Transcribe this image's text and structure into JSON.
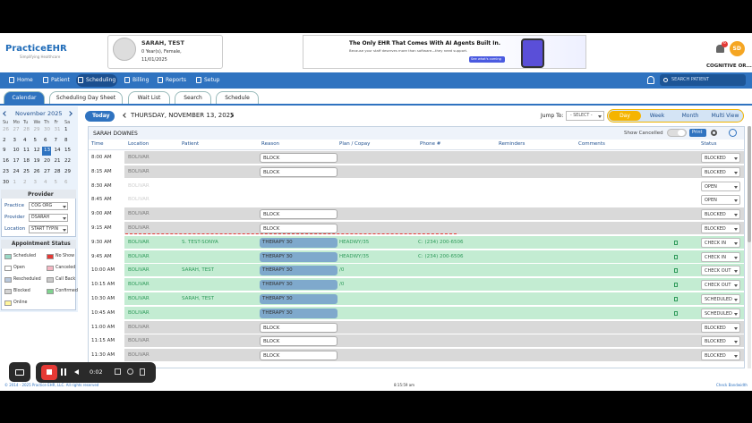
{
  "header": {
    "logo": "PracticeEHR",
    "tagline": "Simplifying Healthcare",
    "patient_name": "SARAH, TEST",
    "patient_info": "0 Year(s), Female,",
    "patient_dob": "11/01/2025",
    "ad_title": "The Only EHR That Comes With AI Agents Built In.",
    "ad_subtitle": "Because your staff deserves more than software—they need support.",
    "ad_button": "See what's coming",
    "notifications": "6",
    "user_initials": "SD",
    "user_name": "COGNITIVE OR..."
  },
  "nav": {
    "items": [
      "Home",
      "Patient",
      "Scheduling",
      "Billing",
      "Reports",
      "Setup"
    ],
    "active": 2,
    "search": "SEARCH PATIENT"
  },
  "tabs": {
    "items": [
      "Calendar",
      "Scheduling Day Sheet",
      "Wait List",
      "Search",
      "Schedule"
    ],
    "active": 0
  },
  "calendar": {
    "month": "November",
    "year": "2025",
    "weekdays": [
      "Su",
      "Mo",
      "Tu",
      "We",
      "Th",
      "Fr",
      "Sa"
    ],
    "prev_month_days": [
      26,
      27,
      28,
      29,
      30,
      31
    ],
    "days": [
      1,
      2,
      3,
      4,
      5,
      6,
      7,
      8,
      9,
      10,
      11,
      12,
      13,
      14,
      15,
      16,
      17,
      18,
      19,
      20,
      21,
      22,
      23,
      24,
      25,
      26,
      27,
      28,
      29,
      30
    ],
    "next_month_days": [
      1,
      2,
      3,
      4,
      5,
      6
    ],
    "selected": 13
  },
  "provider_panel": {
    "title": "Provider",
    "fields": [
      {
        "label": "Practice",
        "value": "COG ORG"
      },
      {
        "label": "Provider",
        "value": "DSARAH"
      },
      {
        "label": "Location",
        "value": "START TYPIN"
      }
    ]
  },
  "status_legend": {
    "title": "Appointment Status",
    "items": [
      {
        "label": "Scheduled",
        "color": "#9ad9c6"
      },
      {
        "label": "No Show",
        "color": "#e53935"
      },
      {
        "label": "Open",
        "color": "#ffffff"
      },
      {
        "label": "Canceled",
        "color": "#f4b6c2"
      },
      {
        "label": "Rescheduled",
        "color": "#b9c8dc"
      },
      {
        "label": "Call Back",
        "color": "#c9c9c9"
      },
      {
        "label": "Blocked",
        "color": "#d4d4d4"
      },
      {
        "label": "Confirmed",
        "color": "#7fd38f"
      },
      {
        "label": "Online",
        "color": "#fff59d"
      }
    ]
  },
  "toolbar": {
    "today": "Today",
    "date": "THURSDAY, NOVEMBER 13, 2025",
    "jump_label": "Jump To:",
    "jump_value": "- SELECT -",
    "views": [
      "Day",
      "Week",
      "Month",
      "Multi View"
    ],
    "active_view": 0
  },
  "schedule": {
    "provider": "SARAH DOWNES",
    "show_cancelled": "Show Cancelled",
    "print": "Print",
    "columns": [
      "Time",
      "Location",
      "Patient",
      "Reason",
      "Plan / Copay",
      "Phone #",
      "Reminders",
      "Comments",
      "Status"
    ],
    "rows": [
      {
        "time": "8:00 AM",
        "location": "BOLIVAR",
        "reason": "BLOCK",
        "status": "BLOCKED",
        "color": "#d9d9d9",
        "text_color": "#7a7a7a"
      },
      {
        "time": "8:15 AM",
        "location": "BOLIVAR",
        "reason": "BLOCK",
        "status": "BLOCKED",
        "color": "#d9d9d9",
        "text_color": "#7a7a7a"
      },
      {
        "time": "8:30 AM",
        "location": "BOLIVAR",
        "status": "OPEN",
        "color": "#ffffff",
        "text_color": "#cfcfcf"
      },
      {
        "time": "8:45 AM",
        "location": "BOLIVAR",
        "status": "OPEN",
        "color": "#ffffff",
        "text_color": "#cfcfcf"
      },
      {
        "time": "9:00 AM",
        "location": "BOLIVAR",
        "reason": "BLOCK",
        "status": "BLOCKED",
        "color": "#d9d9d9",
        "text_color": "#7a7a7a"
      },
      {
        "time": "9:15 AM",
        "location": "BOLIVAR",
        "reason": "BLOCK",
        "status": "BLOCKED",
        "color": "#d9d9d9",
        "text_color": "#7a7a7a"
      },
      {
        "time": "9:30 AM",
        "location": "BOLIVAR",
        "patient": "S. TEST-SONYA",
        "reason": "THERAPY 30",
        "plan": "HEADWY/35",
        "phone": "C: (234) 200-6506",
        "status": "CHECK IN",
        "color": "#c3ecd2",
        "text_color": "#2e9a5a"
      },
      {
        "time": "9:45 AM",
        "location": "BOLIVAR",
        "reason": "THERAPY 30",
        "plan": "HEADWY/35",
        "phone": "C: (234) 200-6506",
        "status": "CHECK IN",
        "color": "#c3ecd2",
        "text_color": "#2e9a5a"
      },
      {
        "time": "10:00 AM",
        "location": "BOLIVAR",
        "patient": "SARAH, TEST",
        "reason": "THERAPY 30",
        "plan": "/0",
        "status": "CHECK OUT",
        "color": "#c3ecd2",
        "text_color": "#2e9a5a"
      },
      {
        "time": "10:15 AM",
        "location": "BOLIVAR",
        "reason": "THERAPY 30",
        "plan": "/0",
        "status": "CHECK OUT",
        "color": "#c3ecd2",
        "text_color": "#2e9a5a"
      },
      {
        "time": "10:30 AM",
        "location": "BOLIVAR",
        "patient": "SARAH, TEST",
        "reason": "THERAPY 30",
        "status": "SCHEDULED",
        "color": "#c3ecd2",
        "text_color": "#2e9a5a"
      },
      {
        "time": "10:45 AM",
        "location": "BOLIVAR",
        "reason": "THERAPY 30",
        "status": "SCHEDULED",
        "color": "#c3ecd2",
        "text_color": "#2e9a5a"
      },
      {
        "time": "11:00 AM",
        "location": "BOLIVAR",
        "reason": "BLOCK",
        "status": "BLOCKED",
        "color": "#d9d9d9",
        "text_color": "#7a7a7a"
      },
      {
        "time": "11:15 AM",
        "location": "BOLIVAR",
        "reason": "BLOCK",
        "status": "BLOCKED",
        "color": "#d9d9d9",
        "text_color": "#7a7a7a"
      },
      {
        "time": "11:30 AM",
        "location": "BOLIVAR",
        "reason": "BLOCK",
        "status": "BLOCKED",
        "color": "#d9d9d9",
        "text_color": "#7a7a7a"
      }
    ]
  },
  "footer": {
    "copyright": "© 2014 - 2025 Practice EHR, LLC. All rights reserved",
    "time": "8:15:59 am",
    "bandwidth": "Check Bandwidth"
  },
  "recorder": {
    "elapsed": "0:02"
  }
}
